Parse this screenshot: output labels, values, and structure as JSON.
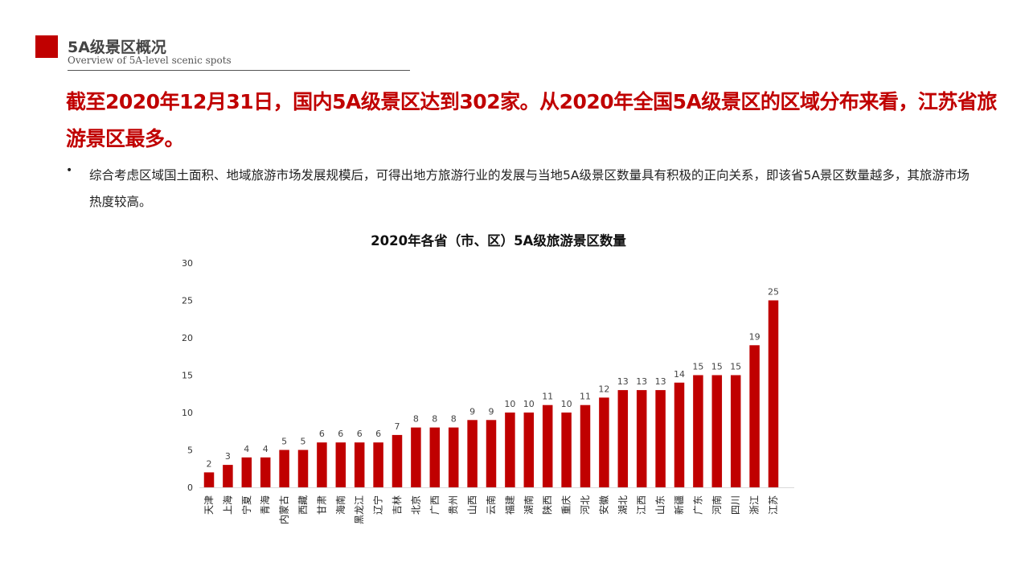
{
  "section": {
    "title": "5A级景区概况",
    "subtitle": "Overview of 5A-level scenic spots"
  },
  "headline": "截至2020年12月31日，国内5A级景区达到302家。从2020年全国5A级景区的区域分布来看，江苏省旅游景区最多。",
  "bullet": {
    "symbol": "•",
    "text": "综合考虑区域国土面积、地域旅游市场发展规模后，可得出地方旅游行业的发展与当地5A级景区数量具有积极的正向关系，即该省5A景区数量越多，其旅游市场热度较高。"
  },
  "colors": {
    "accent": "#c00000"
  },
  "chart_data": {
    "type": "bar",
    "title": "2020年各省（市、区）5A级旅游景区数量",
    "categories": [
      "天津",
      "上海",
      "宁夏",
      "青海",
      "内蒙古",
      "西藏",
      "甘肃",
      "海南",
      "黑龙江",
      "辽宁",
      "吉林",
      "北京",
      "广西",
      "贵州",
      "山西",
      "云南",
      "福建",
      "湖南",
      "陕西",
      "重庆",
      "河北",
      "安徽",
      "湖北",
      "江西",
      "山东",
      "新疆",
      "广东",
      "河南",
      "四川",
      "浙江",
      "江苏"
    ],
    "values": [
      2,
      3,
      4,
      4,
      5,
      5,
      6,
      6,
      6,
      6,
      7,
      8,
      8,
      8,
      9,
      9,
      10,
      10,
      11,
      10,
      11,
      12,
      13,
      13,
      13,
      14,
      15,
      15,
      15,
      19,
      25
    ],
    "ylim": [
      0,
      30
    ],
    "yticks": [
      0,
      5,
      10,
      15,
      20,
      25,
      30
    ],
    "xlabel": "",
    "ylabel": "",
    "grid": false,
    "legend": "none",
    "color": "#c00000"
  }
}
